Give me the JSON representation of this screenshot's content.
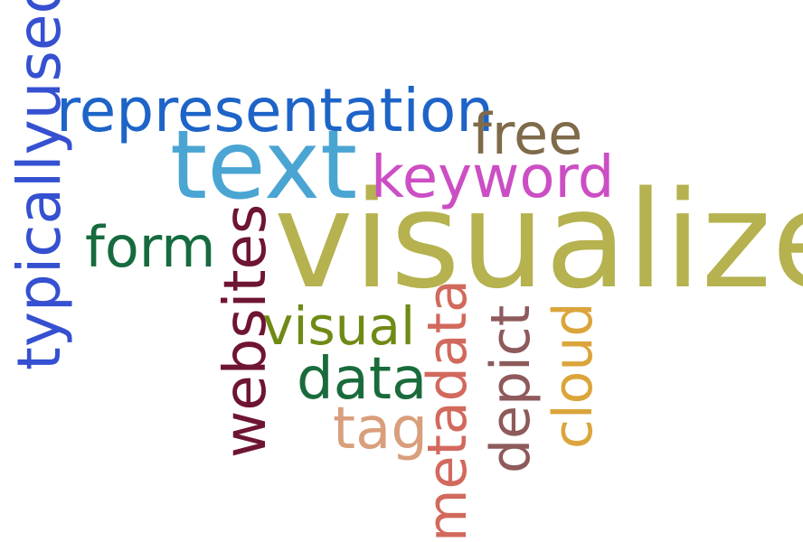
{
  "words": [
    {
      "text": "visualize",
      "color": "#b5b24f"
    },
    {
      "text": "text",
      "color": "#4aa5d3"
    },
    {
      "text": "representation",
      "color": "#1e64c8"
    },
    {
      "text": "typicallyused",
      "color": "#3550d0"
    },
    {
      "text": "keyword",
      "color": "#cc4ec4"
    },
    {
      "text": "free",
      "color": "#7f6a4a"
    },
    {
      "text": "form",
      "color": "#156b3e"
    },
    {
      "text": "websites",
      "color": "#6e1434"
    },
    {
      "text": "visual",
      "color": "#6f8a15"
    },
    {
      "text": "data",
      "color": "#1a6b3c"
    },
    {
      "text": "tag",
      "color": "#d99f7c"
    },
    {
      "text": "metadata",
      "color": "#d2695d"
    },
    {
      "text": "depict",
      "color": "#8e5a5b"
    },
    {
      "text": "cloud",
      "color": "#dba53b"
    }
  ]
}
